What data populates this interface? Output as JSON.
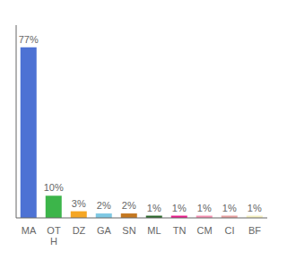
{
  "chart_data": {
    "type": "bar",
    "categories": [
      "MA",
      "OT\nH",
      "DZ",
      "GA",
      "SN",
      "ML",
      "TN",
      "CM",
      "CI",
      "BF"
    ],
    "values": [
      77,
      10,
      3,
      2,
      2,
      1,
      1,
      1,
      1,
      1
    ],
    "value_labels": [
      "77%",
      "10%",
      "3%",
      "2%",
      "2%",
      "1%",
      "1%",
      "1%",
      "1%",
      "1%"
    ],
    "colors": [
      "#4d72d4",
      "#3cb54a",
      "#f5a623",
      "#7ec8e3",
      "#c47820",
      "#2d6a2d",
      "#e91e8c",
      "#f48fb1",
      "#e8a0a0",
      "#f5f0c0"
    ],
    "ylim": [
      0,
      87
    ],
    "data_labels": true,
    "tick_labels": "x",
    "grid": false
  }
}
